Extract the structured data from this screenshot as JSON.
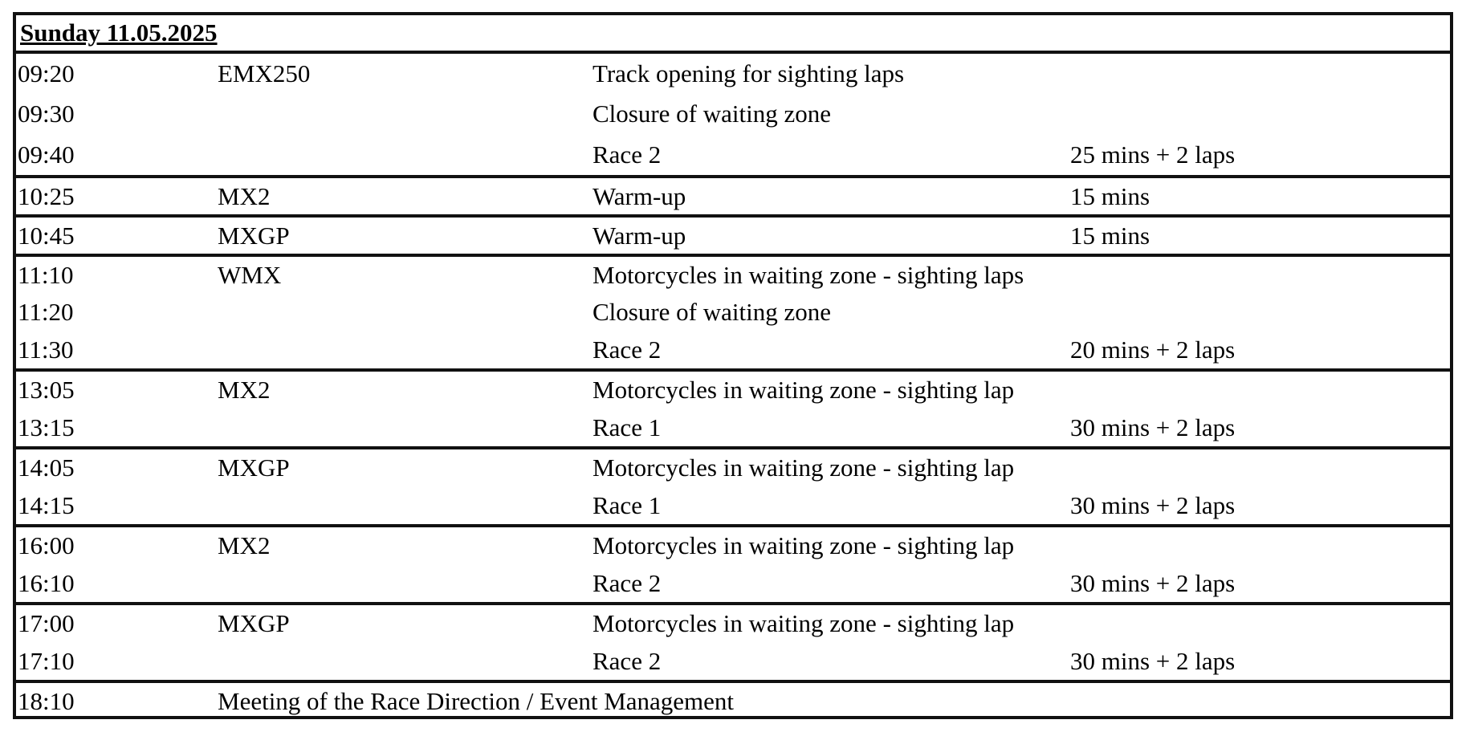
{
  "title": "Sunday 11.05.2025",
  "groups": [
    {
      "rows": [
        {
          "time": "09:20",
          "class": "EMX250",
          "event": "Track opening for sighting laps",
          "duration": ""
        },
        {
          "time": "09:30",
          "class": "",
          "event": "Closure of  waiting zone",
          "duration": ""
        },
        {
          "time": "09:40",
          "class": "",
          "event": "Race 2",
          "duration": "25 mins + 2 laps"
        }
      ]
    },
    {
      "rows": [
        {
          "time": "10:25",
          "class": "MX2",
          "event": "Warm-up",
          "duration": "15 mins"
        }
      ]
    },
    {
      "rows": [
        {
          "time": "10:45",
          "class": "MXGP",
          "event": "Warm-up",
          "duration": "15 mins"
        }
      ]
    },
    {
      "rows": [
        {
          "time": "11:10",
          "class": "WMX",
          "event": "Motorcycles in waiting zone - sighting laps",
          "duration": ""
        },
        {
          "time": "11:20",
          "class": "",
          "event": "Closure of  waiting zone",
          "duration": ""
        },
        {
          "time": "11:30",
          "class": "",
          "event": "Race 2",
          "duration": "20 mins + 2 laps"
        }
      ]
    },
    {
      "rows": [
        {
          "time": "13:05",
          "class": "MX2",
          "event": "Motorcycles in waiting zone - sighting lap",
          "duration": ""
        },
        {
          "time": "13:15",
          "class": "",
          "event": "Race 1",
          "duration": "30 mins + 2 laps"
        }
      ]
    },
    {
      "rows": [
        {
          "time": "14:05",
          "class": "MXGP",
          "event": "Motorcycles in waiting zone - sighting lap",
          "duration": ""
        },
        {
          "time": "14:15",
          "class": "",
          "event": "Race 1",
          "duration": "30 mins + 2 laps"
        }
      ]
    },
    {
      "rows": [
        {
          "time": "16:00",
          "class": "MX2",
          "event": "Motorcycles in waiting zone - sighting lap",
          "duration": ""
        },
        {
          "time": "16:10",
          "class": "",
          "event": "Race 2",
          "duration": "30 mins + 2 laps"
        }
      ]
    },
    {
      "rows": [
        {
          "time": "17:00",
          "class": "MXGP",
          "event": "Motorcycles in waiting zone - sighting lap",
          "duration": ""
        },
        {
          "time": "17:10",
          "class": "",
          "event": "Race 2",
          "duration": "30 mins + 2 laps"
        }
      ]
    },
    {
      "rows": [
        {
          "time": "18:10",
          "class": "Meeting of the Race Direction / Event Management",
          "event": "",
          "duration": ""
        }
      ]
    }
  ]
}
